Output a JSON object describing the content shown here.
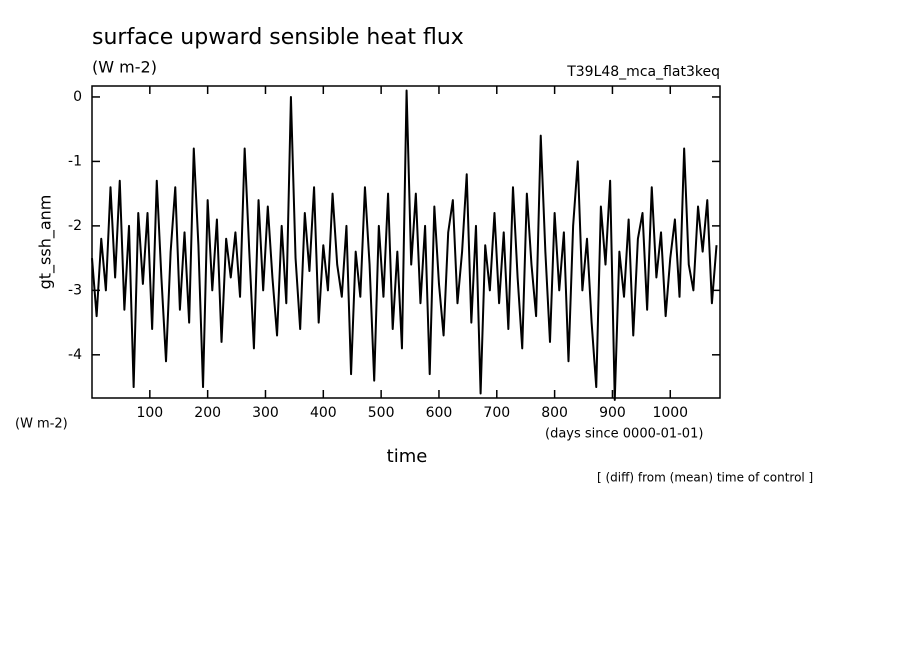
{
  "chart_data": {
    "type": "line",
    "title": "surface upward sensible heat flux",
    "subtitle": "(W m-2)",
    "run_label": "T39L48_mca_flat3keq",
    "y_label": "gt_ssh_anm",
    "y_units": "(W m-2)",
    "x_label": "time",
    "x_units": "(days since 0000-01-01)",
    "note": "[ (diff) from (mean) time of control ]",
    "x": [
      0,
      8,
      16,
      24,
      32,
      40,
      48,
      56,
      64,
      72,
      80,
      88,
      96,
      104,
      112,
      120,
      128,
      136,
      144,
      152,
      160,
      168,
      176,
      184,
      192,
      200,
      208,
      216,
      224,
      232,
      240,
      248,
      256,
      264,
      272,
      280,
      288,
      296,
      304,
      312,
      320,
      328,
      336,
      344,
      352,
      360,
      368,
      376,
      384,
      392,
      400,
      408,
      416,
      424,
      432,
      440,
      448,
      456,
      464,
      472,
      480,
      488,
      496,
      504,
      512,
      520,
      528,
      536,
      544,
      552,
      560,
      568,
      576,
      584,
      592,
      600,
      608,
      616,
      624,
      632,
      640,
      648,
      656,
      664,
      672,
      680,
      688,
      696,
      704,
      712,
      720,
      728,
      736,
      744,
      752,
      760,
      768,
      776,
      784,
      792,
      800,
      808,
      816,
      824,
      832,
      840,
      848,
      856,
      864,
      872,
      880,
      888,
      896,
      904,
      912,
      920,
      928,
      936,
      944,
      952,
      960,
      968,
      976,
      984,
      992,
      1000,
      1008,
      1016,
      1024,
      1032,
      1040,
      1048,
      1056,
      1064,
      1072,
      1080
    ],
    "series": [
      {
        "color": "#000000",
        "values": [
          -2.5,
          -3.4,
          -2.2,
          -3.0,
          -1.4,
          -2.8,
          -1.3,
          -3.3,
          -2.0,
          -4.5,
          -1.8,
          -2.9,
          -1.8,
          -3.6,
          -1.3,
          -2.8,
          -4.1,
          -2.4,
          -1.4,
          -3.3,
          -2.1,
          -3.5,
          -0.8,
          -2.3,
          -4.5,
          -1.6,
          -3.0,
          -1.9,
          -3.8,
          -2.2,
          -2.8,
          -2.1,
          -3.1,
          -0.8,
          -2.4,
          -3.9,
          -1.6,
          -3.0,
          -1.7,
          -2.8,
          -3.7,
          -2.0,
          -3.2,
          0.0,
          -2.5,
          -3.6,
          -1.8,
          -2.7,
          -1.4,
          -3.5,
          -2.3,
          -3.0,
          -1.5,
          -2.6,
          -3.1,
          -2.0,
          -4.3,
          -2.4,
          -3.1,
          -1.4,
          -2.6,
          -4.4,
          -2.0,
          -3.1,
          -1.5,
          -3.6,
          -2.4,
          -3.9,
          0.1,
          -2.6,
          -1.5,
          -3.2,
          -2.0,
          -4.3,
          -1.7,
          -2.9,
          -3.7,
          -2.1,
          -1.6,
          -3.2,
          -2.4,
          -1.2,
          -3.5,
          -2.0,
          -4.6,
          -2.3,
          -3.0,
          -1.8,
          -3.2,
          -2.1,
          -3.6,
          -1.4,
          -2.8,
          -3.9,
          -1.5,
          -2.6,
          -3.4,
          -0.6,
          -2.4,
          -3.8,
          -1.8,
          -3.0,
          -2.1,
          -4.1,
          -2.0,
          -1.0,
          -3.0,
          -2.2,
          -3.5,
          -4.5,
          -1.7,
          -2.6,
          -1.3,
          -4.7,
          -2.4,
          -3.1,
          -1.9,
          -3.7,
          -2.2,
          -1.8,
          -3.3,
          -1.4,
          -2.8,
          -2.1,
          -3.4,
          -2.5,
          -1.9,
          -3.1,
          -0.8,
          -2.6,
          -3.0,
          -1.7,
          -2.4,
          -1.6,
          -3.2,
          -2.3
        ]
      }
    ],
    "xlim": [
      0,
      1086
    ],
    "ylim": [
      -4.67,
      0.17
    ],
    "xticks": [
      100,
      200,
      300,
      400,
      500,
      600,
      700,
      800,
      900,
      1000
    ],
    "yticks": [
      -4,
      -3,
      -2,
      -1,
      0
    ]
  }
}
